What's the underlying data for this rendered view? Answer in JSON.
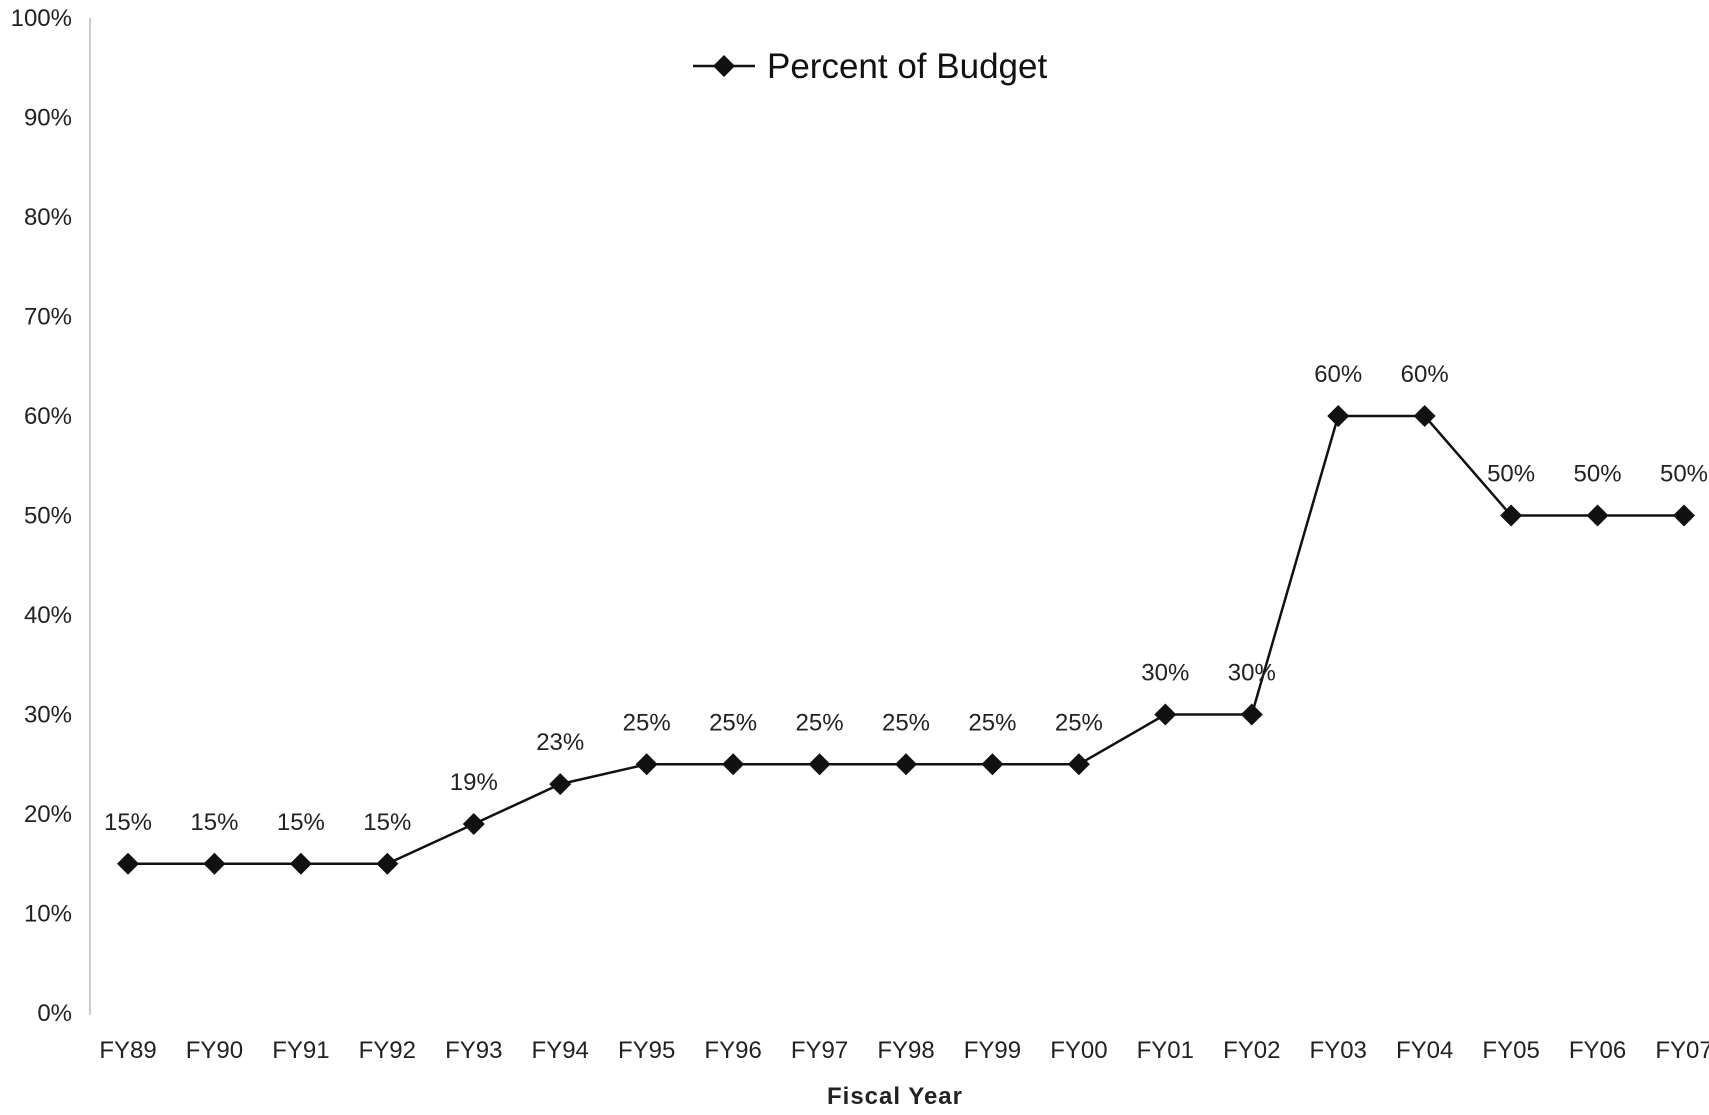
{
  "chart_data": {
    "type": "line",
    "title": "",
    "xlabel": "Fiscal Year",
    "ylabel": "",
    "ylim": [
      0,
      100
    ],
    "y_ticks": [
      "0%",
      "10%",
      "20%",
      "30%",
      "40%",
      "50%",
      "60%",
      "70%",
      "80%",
      "90%",
      "100%"
    ],
    "y_tick_values": [
      0,
      10,
      20,
      30,
      40,
      50,
      60,
      70,
      80,
      90,
      100
    ],
    "categories": [
      "FY89",
      "FY90",
      "FY91",
      "FY92",
      "FY93",
      "FY94",
      "FY95",
      "FY96",
      "FY97",
      "FY98",
      "FY99",
      "FY00",
      "FY01",
      "FY02",
      "FY03",
      "FY04",
      "FY05",
      "FY06",
      "FY07"
    ],
    "series": [
      {
        "name": "Percent of Budget",
        "values": [
          15,
          15,
          15,
          15,
          19,
          23,
          25,
          25,
          25,
          25,
          25,
          25,
          30,
          30,
          60,
          60,
          50,
          50,
          50
        ],
        "labels": [
          "15%",
          "15%",
          "15%",
          "15%",
          "19%",
          "23%",
          "25%",
          "25%",
          "25%",
          "25%",
          "25%",
          "25%",
          "30%",
          "30%",
          "60%",
          "60%",
          "50%",
          "50%",
          "50%"
        ],
        "marker": "diamond",
        "color": "#111111"
      }
    ],
    "legend": {
      "position": "top-center"
    },
    "grid": false
  }
}
